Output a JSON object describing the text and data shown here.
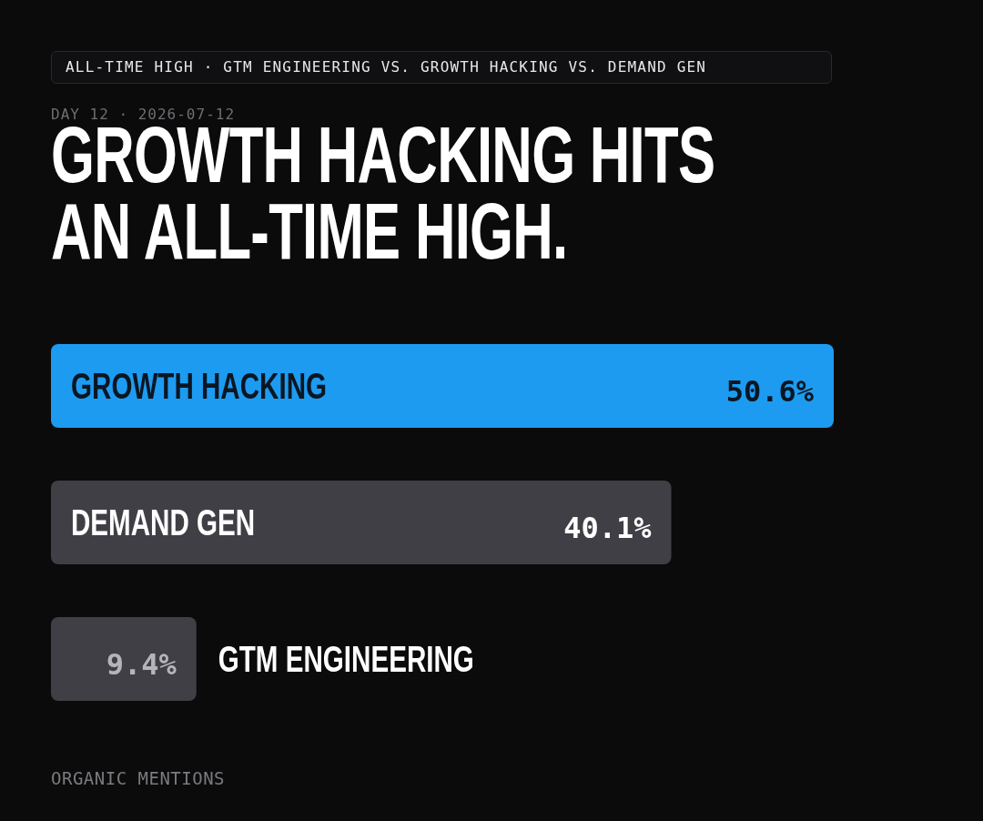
{
  "chart_data": {
    "type": "bar",
    "orientation": "horizontal",
    "title": "GROWTH HACKING HITS AN ALL-TIME HIGH.",
    "subtitle": "ALL-TIME HIGH · GTM ENGINEERING VS. GROWTH HACKING VS. DEMAND GEN",
    "annotations": [
      "DAY 12 · 2026-07-12",
      "ORGANIC MENTIONS"
    ],
    "categories": [
      "GROWTH HACKING",
      "DEMAND GEN",
      "GTM ENGINEERING"
    ],
    "values": [
      50.6,
      40.1,
      9.4
    ],
    "colors": [
      "#1d9bf0",
      "#3f3f45",
      "#3f3f45"
    ],
    "value_labels": [
      "50.6%",
      "40.1%",
      "9.4%"
    ],
    "xlim": [
      0,
      50.6
    ],
    "tick_labels": false
  }
}
